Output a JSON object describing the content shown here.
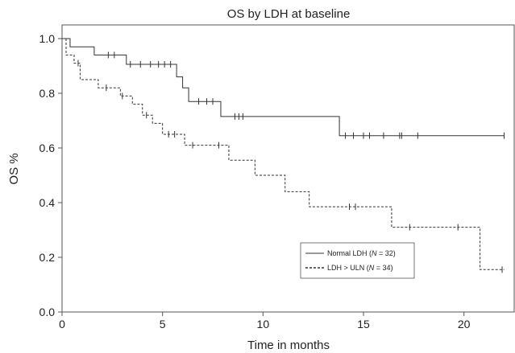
{
  "chart_data": {
    "type": "line",
    "title": "OS by LDH at baseline",
    "xlabel": "Time in months",
    "ylabel": "OS %",
    "xlim": [
      0,
      22.5
    ],
    "ylim": [
      0,
      1.05
    ],
    "x_ticks": [
      "0",
      "5",
      "10",
      "15",
      "20"
    ],
    "y_ticks": [
      "0.0",
      "0.2",
      "0.4",
      "0.6",
      "0.8",
      "1.0"
    ],
    "grid": false,
    "legend_position": "lower-right",
    "series": [
      {
        "name_parts": [
          "Normal LDH (",
          "N",
          " = 32)"
        ],
        "style": "solid",
        "steps": [
          [
            0,
            1.0
          ],
          [
            0.4,
            0.97
          ],
          [
            1.6,
            0.94
          ],
          [
            3.2,
            0.906
          ],
          [
            5.7,
            0.86
          ],
          [
            6.0,
            0.82
          ],
          [
            6.3,
            0.77
          ],
          [
            7.9,
            0.715
          ],
          [
            13.8,
            0.645
          ],
          [
            22.0,
            0.645
          ]
        ],
        "censored": [
          [
            2.3,
            0.94
          ],
          [
            2.6,
            0.94
          ],
          [
            3.4,
            0.906
          ],
          [
            3.9,
            0.906
          ],
          [
            4.4,
            0.906
          ],
          [
            4.8,
            0.906
          ],
          [
            5.1,
            0.906
          ],
          [
            5.4,
            0.906
          ],
          [
            6.8,
            0.77
          ],
          [
            7.2,
            0.77
          ],
          [
            7.5,
            0.77
          ],
          [
            8.6,
            0.715
          ],
          [
            8.8,
            0.715
          ],
          [
            9.0,
            0.715
          ],
          [
            14.1,
            0.645
          ],
          [
            14.5,
            0.645
          ],
          [
            15.0,
            0.645
          ],
          [
            15.3,
            0.645
          ],
          [
            16.0,
            0.645
          ],
          [
            16.8,
            0.645
          ],
          [
            16.9,
            0.645
          ],
          [
            17.7,
            0.645
          ],
          [
            22.0,
            0.645
          ]
        ]
      },
      {
        "name_parts": [
          "LDH > ULN (",
          "N",
          " = 34)"
        ],
        "style": "dashed",
        "steps": [
          [
            0,
            1.0
          ],
          [
            0.2,
            0.94
          ],
          [
            0.6,
            0.91
          ],
          [
            0.9,
            0.85
          ],
          [
            1.8,
            0.82
          ],
          [
            2.9,
            0.79
          ],
          [
            3.5,
            0.76
          ],
          [
            4.0,
            0.72
          ],
          [
            4.5,
            0.69
          ],
          [
            5.0,
            0.65
          ],
          [
            6.1,
            0.61
          ],
          [
            8.3,
            0.555
          ],
          [
            9.6,
            0.5
          ],
          [
            11.1,
            0.44
          ],
          [
            12.3,
            0.385
          ],
          [
            16.4,
            0.31
          ],
          [
            20.8,
            0.155
          ],
          [
            22.0,
            0.155
          ]
        ],
        "censored": [
          [
            0.8,
            0.91
          ],
          [
            2.2,
            0.82
          ],
          [
            3.0,
            0.79
          ],
          [
            4.2,
            0.72
          ],
          [
            5.3,
            0.65
          ],
          [
            5.6,
            0.65
          ],
          [
            6.5,
            0.61
          ],
          [
            7.8,
            0.61
          ],
          [
            14.3,
            0.385
          ],
          [
            14.6,
            0.385
          ],
          [
            17.3,
            0.31
          ],
          [
            19.7,
            0.31
          ],
          [
            21.9,
            0.155
          ]
        ]
      }
    ]
  }
}
